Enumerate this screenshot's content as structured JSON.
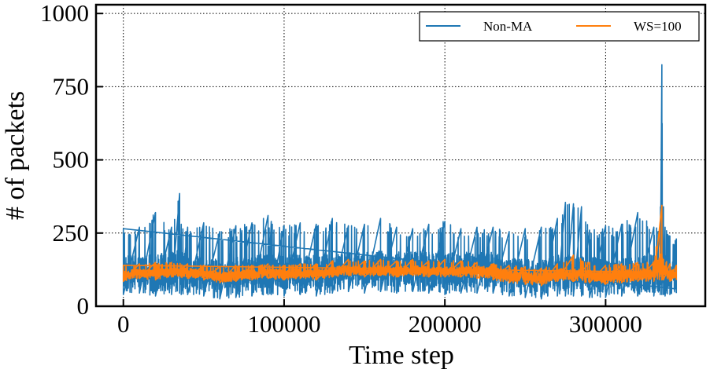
{
  "chart_data": {
    "type": "line",
    "title": "",
    "xlabel": "Time step",
    "ylabel": "# of packets",
    "xlim": [
      -17000,
      362000
    ],
    "ylim": [
      0,
      1030
    ],
    "xticks": [
      0,
      100000,
      200000,
      300000
    ],
    "xtick_labels": [
      "0",
      "100000",
      "200000",
      "300000"
    ],
    "yticks": [
      0,
      250,
      500,
      750,
      1000
    ],
    "ytick_labels": [
      "0",
      "250",
      "500",
      "750",
      "1000"
    ],
    "grid": true,
    "grid_style": "dotted",
    "legend": {
      "placement": "top-right",
      "columns": 2
    },
    "series": [
      {
        "name": "Non-MA",
        "color": "#1f77b4",
        "x": [
          0,
          10000,
          20000,
          30000,
          35000,
          36000,
          40000,
          50000,
          60000,
          70000,
          80000,
          90000,
          92000,
          100000,
          110000,
          120000,
          130000,
          140000,
          150000,
          160000,
          170000,
          180000,
          190000,
          200000,
          210000,
          220000,
          230000,
          240000,
          250000,
          260000,
          270000,
          275000,
          280000,
          285000,
          290000,
          300000,
          310000,
          320000,
          330000,
          334000,
          335000,
          336000,
          337000,
          340000,
          344000
        ],
        "y_mean": [
          115,
          120,
          115,
          125,
          130,
          125,
          120,
          115,
          100,
          110,
          115,
          120,
          120,
          115,
          120,
          115,
          125,
          130,
          125,
          130,
          125,
          130,
          125,
          120,
          125,
          125,
          125,
          110,
          105,
          100,
          115,
          115,
          115,
          115,
          110,
          105,
          110,
          115,
          115,
          120,
          160,
          120,
          115,
          110,
          110
        ],
        "y_min": [
          40,
          45,
          35,
          40,
          45,
          40,
          40,
          35,
          25,
          30,
          35,
          40,
          40,
          35,
          40,
          35,
          45,
          50,
          45,
          50,
          45,
          50,
          45,
          40,
          45,
          45,
          45,
          35,
          30,
          25,
          35,
          35,
          35,
          35,
          30,
          30,
          35,
          35,
          35,
          40,
          40,
          40,
          35,
          40,
          45
        ],
        "y_max": [
          265,
          270,
          320,
          270,
          385,
          280,
          270,
          285,
          255,
          275,
          285,
          310,
          290,
          275,
          285,
          280,
          300,
          275,
          280,
          300,
          270,
          265,
          280,
          290,
          265,
          270,
          270,
          255,
          265,
          270,
          300,
          355,
          350,
          340,
          260,
          275,
          280,
          320,
          270,
          275,
          825,
          340,
          270,
          240,
          230
        ]
      },
      {
        "name": "WS=100",
        "color": "#ff7f0e",
        "x": [
          0,
          10000,
          20000,
          30000,
          40000,
          50000,
          60000,
          70000,
          80000,
          90000,
          100000,
          110000,
          120000,
          130000,
          140000,
          150000,
          160000,
          170000,
          180000,
          190000,
          200000,
          210000,
          220000,
          230000,
          240000,
          250000,
          260000,
          270000,
          280000,
          290000,
          300000,
          310000,
          320000,
          330000,
          335000,
          336000,
          340000,
          344000
        ],
        "y_mean": [
          105,
          115,
          110,
          120,
          115,
          110,
          100,
          105,
          110,
          115,
          110,
          115,
          110,
          120,
          125,
          120,
          125,
          120,
          125,
          120,
          120,
          120,
          120,
          115,
          105,
          100,
          95,
          110,
          110,
          105,
          100,
          105,
          110,
          110,
          150,
          120,
          110,
          110
        ],
        "y_min": [
          85,
          95,
          90,
          100,
          95,
          90,
          80,
          85,
          90,
          95,
          90,
          95,
          90,
          100,
          105,
          100,
          105,
          100,
          105,
          100,
          100,
          100,
          95,
          90,
          80,
          75,
          70,
          85,
          85,
          80,
          75,
          80,
          85,
          85,
          90,
          90,
          85,
          90
        ],
        "y_max": [
          140,
          145,
          150,
          150,
          145,
          140,
          135,
          140,
          140,
          145,
          140,
          145,
          145,
          155,
          160,
          155,
          160,
          155,
          160,
          155,
          160,
          155,
          150,
          145,
          140,
          135,
          130,
          145,
          175,
          150,
          140,
          145,
          150,
          150,
          345,
          160,
          145,
          140
        ]
      }
    ]
  }
}
